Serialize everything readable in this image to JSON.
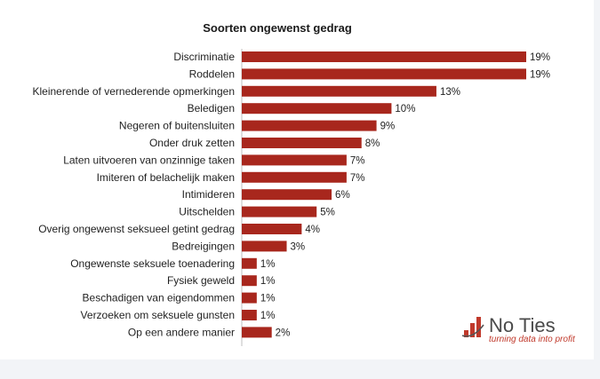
{
  "bar_color": "#a8271d",
  "chart_data": {
    "type": "bar",
    "orientation": "horizontal",
    "title": "Soorten ongewenst gedrag",
    "categories": [
      "Discriminatie",
      "Roddelen",
      "Kleinerende of vernederende opmerkingen",
      "Beledigen",
      "Negeren of buitensluiten",
      "Onder druk zetten",
      "Laten uitvoeren van onzinnige taken",
      "Imiteren of belachelijk maken",
      "Intimideren",
      "Uitschelden",
      "Overig ongewenst seksueel getint gedrag",
      "Bedreigingen",
      "Ongewenste seksuele toenadering",
      "Fysiek geweld",
      "Beschadigen van eigendommen",
      "Verzoeken om seksuele gunsten",
      "Op een andere manier"
    ],
    "values": [
      19,
      19,
      13,
      10,
      9,
      8,
      7,
      7,
      6,
      5,
      4,
      3,
      1,
      1,
      1,
      1,
      2
    ],
    "labels": [
      "19%",
      "19%",
      "13%",
      "10%",
      "9%",
      "8%",
      "7%",
      "7%",
      "6%",
      "5%",
      "4%",
      "3%",
      "1%",
      "1%",
      "1%",
      "1%",
      "2%"
    ],
    "unit": "%",
    "xlabel": "",
    "ylabel": "",
    "grid": false,
    "legend": "none"
  },
  "logo": {
    "name": "No Ties",
    "tagline": "turning data into profit",
    "icon": "bar-chart-logo-icon"
  }
}
